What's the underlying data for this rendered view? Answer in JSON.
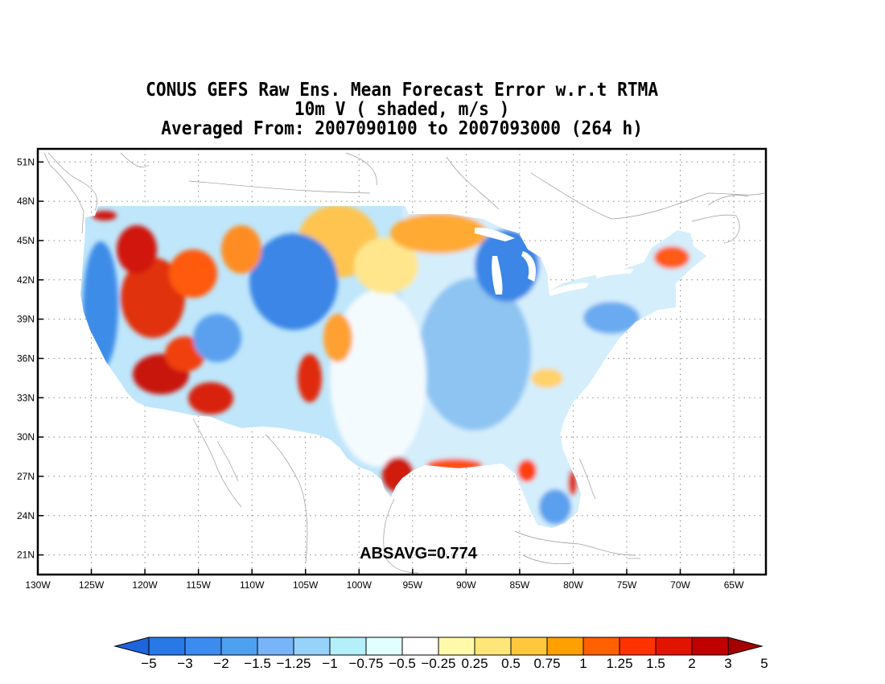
{
  "title": {
    "line1": "CONUS GEFS Raw Ens. Mean Forecast Error w.r.t RTMA",
    "line2": "10m V ( shaded, m/s )",
    "line3": "Averaged From: 2007090100 to 2007093000 (264 h)"
  },
  "map": {
    "lon_range": [
      -130,
      -62
    ],
    "lat_range": [
      19.5,
      52
    ],
    "lon_ticks": [
      "130W",
      "125W",
      "120W",
      "115W",
      "110W",
      "105W",
      "100W",
      "95W",
      "90W",
      "85W",
      "80W",
      "75W",
      "70W",
      "65W"
    ],
    "lat_ticks": [
      "21N",
      "24N",
      "27N",
      "30N",
      "33N",
      "36N",
      "39N",
      "42N",
      "45N",
      "48N",
      "51N"
    ],
    "grid": "dotted",
    "statistic": "ABSAVG=0.774"
  },
  "colorbar": {
    "labels": [
      "−5",
      "−3",
      "−2",
      "−1.5",
      "−1.25",
      "−1",
      "−0.75",
      "−0.5",
      "−0.25",
      "0.25",
      "0.5",
      "0.75",
      "1",
      "1.25",
      "1.5",
      "2",
      "3",
      "5"
    ],
    "colors": [
      "#1e64dc",
      "#2878e6",
      "#3c8cf0",
      "#4ea0f0",
      "#78b4f8",
      "#96d2fa",
      "#b4f0fa",
      "#e1ffff",
      "#ffffff",
      "#fffaaa",
      "#ffe678",
      "#ffc83c",
      "#ffa000",
      "#ff6000",
      "#ff3200",
      "#e11400",
      "#c00000",
      "#a50000"
    ]
  }
}
